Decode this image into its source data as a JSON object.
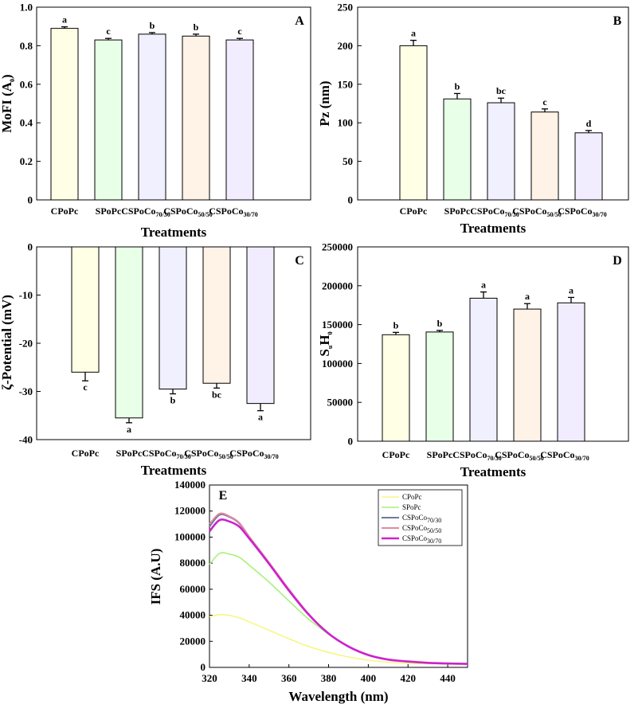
{
  "chart_data": [
    {
      "panel": "A",
      "type": "bar",
      "categories": [
        {
          "main": "CPoPc",
          "sub": ""
        },
        {
          "main": "SPoPc",
          "sub": ""
        },
        {
          "main": "CSPoCo",
          "sub": "70/30"
        },
        {
          "main": "CSPoCo",
          "sub": "50/50"
        },
        {
          "main": "CSPoCo",
          "sub": "30/70"
        }
      ],
      "values": [
        0.89,
        0.83,
        0.86,
        0.85,
        0.83
      ],
      "errors": [
        0.008,
        0.008,
        0.008,
        0.01,
        0.008
      ],
      "letters": [
        "a",
        "c",
        "b",
        "b",
        "c"
      ],
      "ylabel_main": "MoFI (A",
      "ylabel_sub": "0",
      "ylabel_end": ")",
      "xlabel": "Treatments",
      "ylim": [
        0,
        1.0
      ],
      "ticks": [
        0,
        0.2,
        0.4,
        0.6,
        0.8,
        1.0
      ],
      "tick_labels": [
        "0",
        "0.2",
        "0.4",
        "0.6",
        "0.8",
        "1.0"
      ],
      "colors": [
        "#FFFFE6",
        "#E8FFE8",
        "#F0F0FF",
        "#FFF2E6",
        "#F2ECFF"
      ]
    },
    {
      "panel": "B",
      "type": "bar",
      "categories": [
        {
          "main": "CPoPc",
          "sub": ""
        },
        {
          "main": "SPoPc",
          "sub": ""
        },
        {
          "main": "CSPoCo",
          "sub": "70/30"
        },
        {
          "main": "CSPoCo",
          "sub": "50/50"
        },
        {
          "main": "CSPoCo",
          "sub": "30/70"
        }
      ],
      "values": [
        200,
        131,
        126,
        114,
        87
      ],
      "errors": [
        7,
        7,
        6,
        4,
        3
      ],
      "letters": [
        "a",
        "b",
        "bc",
        "c",
        "d"
      ],
      "ylabel_main": "Pz (nm)",
      "ylabel_sub": "",
      "ylabel_end": "",
      "xlabel": "Treatments",
      "ylim": [
        0,
        250
      ],
      "ticks": [
        0,
        50,
        100,
        150,
        200,
        250
      ],
      "tick_labels": [
        "0",
        "50",
        "100",
        "150",
        "200",
        "250"
      ],
      "colors": [
        "#FFFFE6",
        "#E8FFE8",
        "#F0F0FF",
        "#FFF2E6",
        "#F2ECFF"
      ]
    },
    {
      "panel": "C",
      "type": "bar",
      "categories": [
        {
          "main": "CPoPc",
          "sub": ""
        },
        {
          "main": "SPoPc",
          "sub": ""
        },
        {
          "main": "CSPoCo",
          "sub": "70/30"
        },
        {
          "main": "CSPoCo",
          "sub": "50/50"
        },
        {
          "main": "CSPoCo",
          "sub": "30/70"
        }
      ],
      "values": [
        -26,
        -35.5,
        -29.5,
        -28.3,
        -32.5
      ],
      "errors": [
        1.8,
        1.0,
        1.0,
        1.0,
        1.5
      ],
      "letters": [
        "c",
        "a",
        "b",
        "bc",
        "a"
      ],
      "ylabel_main": "ζ-Potential (mV)",
      "ylabel_sub": "",
      "ylabel_end": "",
      "xlabel": "Treatments",
      "ylim": [
        -40,
        0
      ],
      "ticks": [
        0,
        -10,
        -20,
        -30,
        -40
      ],
      "tick_labels": [
        "0",
        "-10",
        "-20",
        "-30",
        "-40"
      ],
      "colors": [
        "#FFFFE6",
        "#E8FFE8",
        "#F0F0FF",
        "#FFF2E6",
        "#F2ECFF"
      ]
    },
    {
      "panel": "D",
      "type": "bar",
      "categories": [
        {
          "main": "CPoPc",
          "sub": ""
        },
        {
          "main": "SPoPc",
          "sub": ""
        },
        {
          "main": "CSPoCo",
          "sub": "70/30"
        },
        {
          "main": "CSPoCo",
          "sub": "50/50"
        },
        {
          "main": "CSPoCo",
          "sub": "30/70"
        }
      ],
      "values": [
        137000,
        140500,
        184000,
        170000,
        178000
      ],
      "errors": [
        3000,
        2000,
        8000,
        7000,
        7000
      ],
      "letters": [
        "b",
        "b",
        "a",
        "a",
        "a"
      ],
      "ylabel_main": "S",
      "ylabel_sub": "u",
      "ylabel_end": "H",
      "ylabel_sub2": "0",
      "xlabel": "Treatments",
      "ylim": [
        0,
        250000
      ],
      "ticks": [
        0,
        50000,
        100000,
        150000,
        200000,
        250000
      ],
      "tick_labels": [
        "0",
        "50000",
        "100000",
        "150000",
        "200000",
        "250000"
      ],
      "colors": [
        "#FFFFE6",
        "#E8FFE8",
        "#F0F0FF",
        "#FFF2E6",
        "#F2ECFF"
      ]
    },
    {
      "panel": "E",
      "type": "line",
      "xlabel": "Wavelength (nm)",
      "ylabel": "IFS (A.U)",
      "xlim": [
        320,
        450
      ],
      "ylim": [
        0,
        140000
      ],
      "xticks": [
        320,
        340,
        360,
        380,
        400,
        420,
        440
      ],
      "xtick_labels": [
        "320",
        "340",
        "360",
        "380",
        "400",
        "420",
        "440"
      ],
      "yticks": [
        0,
        20000,
        40000,
        60000,
        80000,
        100000,
        120000,
        140000
      ],
      "ytick_labels": [
        "0",
        "20000",
        "40000",
        "60000",
        "80000",
        "100000",
        "120000",
        "140000"
      ],
      "x": [
        320,
        325,
        330,
        335,
        340,
        350,
        360,
        370,
        380,
        390,
        400,
        410,
        420,
        430,
        440,
        450
      ],
      "series": [
        {
          "name": "CPoPc",
          "sub": "",
          "color": "#F5F56A",
          "width": 1.3,
          "values": [
            39000,
            40500,
            40000,
            38000,
            35000,
            28500,
            22000,
            16000,
            11500,
            8000,
            5500,
            4000,
            3200,
            2800,
            2500,
            2300
          ]
        },
        {
          "name": "SPoPc",
          "sub": "",
          "color": "#A8F27A",
          "width": 1.6,
          "values": [
            79000,
            87500,
            87000,
            84500,
            78500,
            65500,
            51000,
            37000,
            25500,
            16000,
            9500,
            6000,
            4500,
            3500,
            3000,
            2700
          ]
        },
        {
          "name": "CSPoCo",
          "sub": "70/30",
          "color": "#707AA0",
          "width": 2,
          "values": [
            108000,
            117000,
            115500,
            110500,
            100000,
            80000,
            59500,
            40500,
            26000,
            16000,
            9500,
            6000,
            4500,
            3500,
            3000,
            2700
          ]
        },
        {
          "name": "CSPoCo",
          "sub": "50/50",
          "color": "#E08AA0",
          "width": 2,
          "values": [
            110000,
            118000,
            116000,
            111000,
            100500,
            80500,
            60000,
            41000,
            26000,
            16000,
            9500,
            6000,
            4500,
            3500,
            3000,
            2700
          ]
        },
        {
          "name": "CSPoCo",
          "sub": "30/70",
          "color": "#CC22CC",
          "width": 2.6,
          "values": [
            104500,
            113000,
            112000,
            108000,
            99000,
            79500,
            59000,
            40500,
            26000,
            16000,
            9500,
            6000,
            4500,
            3500,
            3000,
            2700
          ]
        }
      ]
    }
  ]
}
